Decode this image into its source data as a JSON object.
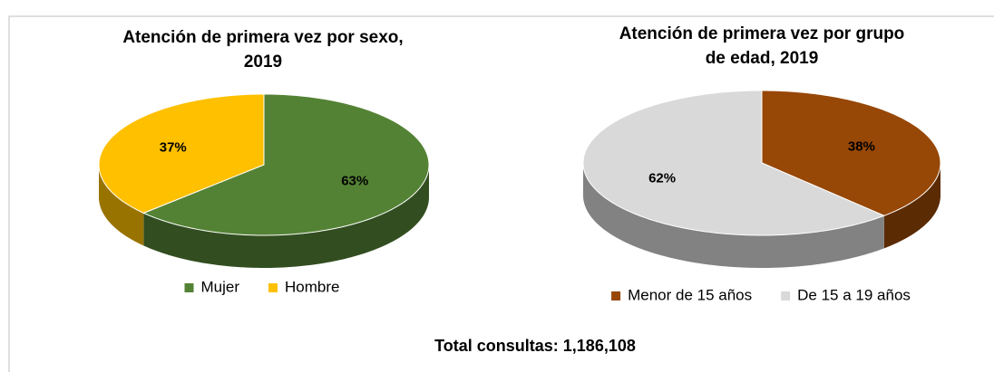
{
  "chart_data": [
    {
      "type": "pie",
      "title": [
        "Atención de primera vez por sexo,",
        "2019"
      ],
      "categories": [
        "Mujer",
        "Hombre"
      ],
      "values": [
        63,
        37
      ],
      "value_labels": [
        "63%",
        "37%"
      ],
      "colors": [
        "#548235",
        "#ffc000"
      ],
      "legend": "bottom"
    },
    {
      "type": "pie",
      "title": [
        "Atención de primera vez por grupo",
        "de edad, 2019"
      ],
      "categories": [
        "Menor de 15 años",
        "De 15 a 19 años"
      ],
      "values": [
        38,
        62
      ],
      "value_labels": [
        "38%",
        "62%"
      ],
      "colors": [
        "#974706",
        "#d9d9d9"
      ],
      "legend": "bottom"
    }
  ],
  "footer": "Total consultas: 1,186,108"
}
